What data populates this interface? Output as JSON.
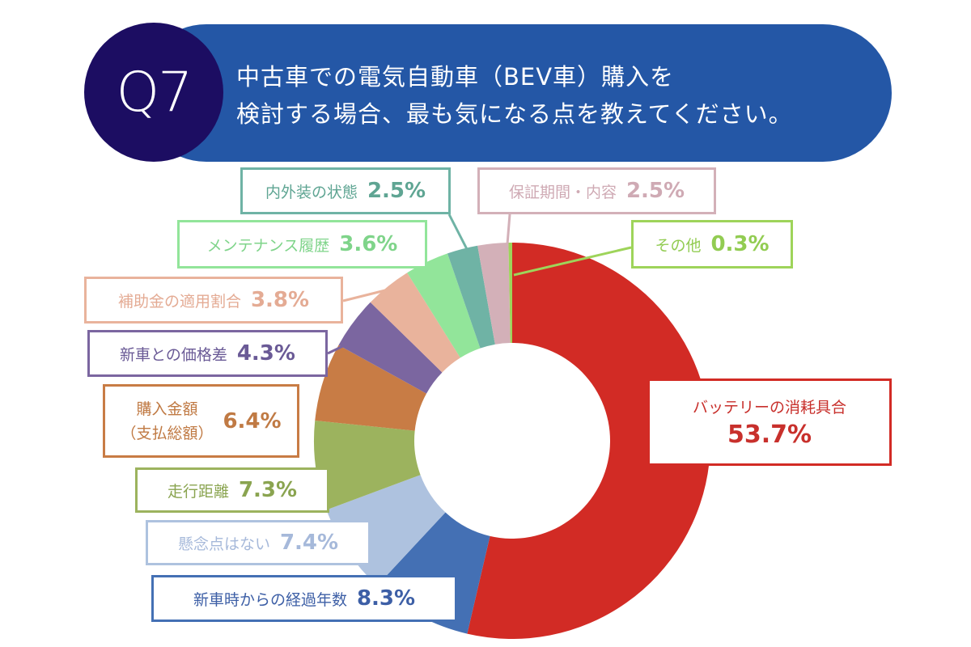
{
  "question": {
    "number": "Q7",
    "line1": "中古車での電気自動車（BEV車）購入を",
    "line2": "検討する場合、最も気になる点を教えてください。"
  },
  "chart_data": {
    "type": "pie",
    "donut": true,
    "start": "top, clockwise",
    "unit": "%",
    "slices": [
      {
        "label": "バッテリーの消耗具合",
        "value": 53.7,
        "pct_text": "53.7%",
        "color": "#d22b25",
        "text_color": "#c8302c"
      },
      {
        "label": "新車時からの経過年数",
        "value": 8.3,
        "pct_text": "8.3%",
        "color": "#4470b4",
        "text_color": "#3d5fa6"
      },
      {
        "label": "懸念点はない",
        "value": 7.4,
        "pct_text": "7.4%",
        "color": "#aec2df",
        "text_color": "#a6b9da"
      },
      {
        "label": "走行距離",
        "value": 7.3,
        "pct_text": "7.3%",
        "color": "#9cb35e",
        "text_color": "#8aa450"
      },
      {
        "label": "購入金額（支払総額）",
        "label_line1": "購入金額",
        "label_line2": "（支払総額）",
        "value": 6.4,
        "pct_text": "6.4%",
        "color": "#c87c45",
        "text_color": "#c07a44"
      },
      {
        "label": "新車との価格差",
        "value": 4.3,
        "pct_text": "4.3%",
        "color": "#7b66a0",
        "text_color": "#6a5a96"
      },
      {
        "label": "補助金の適用割合",
        "value": 3.8,
        "pct_text": "3.8%",
        "color": "#e9b39c",
        "text_color": "#e4ab94"
      },
      {
        "label": "メンテナンス履歴",
        "value": 3.6,
        "pct_text": "3.6%",
        "color": "#92e59a",
        "text_color": "#7fd48a"
      },
      {
        "label": "内外装の状態",
        "value": 2.5,
        "pct_text": "2.5%",
        "color": "#6fb3a5",
        "text_color": "#5fa593"
      },
      {
        "label": "保証期間・内容",
        "value": 2.5,
        "pct_text": "2.5%",
        "color": "#d3b0b8",
        "text_color": "#cfaab4"
      },
      {
        "label": "その他",
        "value": 0.3,
        "pct_text": "0.3%",
        "color": "#9ed45a",
        "text_color": "#92cc52"
      }
    ]
  }
}
